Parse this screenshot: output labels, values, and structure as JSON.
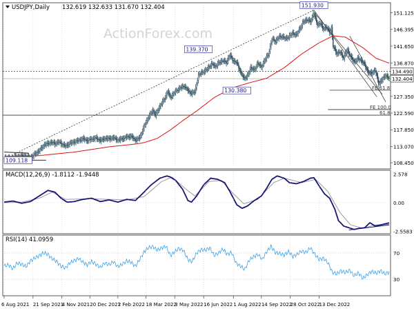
{
  "watermark": "ActionForex.com",
  "chart_data": [
    {
      "type": "candlestick",
      "symbol": "USDJPY",
      "header": "USDJPY,Daily",
      "ohlc_text": "132.619 132.633 131.670 132.404",
      "yticks": [
        151.125,
        146.395,
        141.65,
        136.87,
        132.404,
        127.35,
        122.59,
        117.85,
        113.07,
        108.45
      ],
      "ylim": [
        107.5,
        153.2
      ],
      "x_tick_labels": [
        "6 Aug 2021",
        "21 Sep 2021",
        "4 Nov 2021",
        "20 Dec 2021",
        "2 Feb 2022",
        "18 Mar 2022",
        "3 May 2022",
        "16 Jun 2022",
        "1 Aug 2022",
        "14 Sep 2022",
        "28 Oct 2022",
        "13 Dec 2022"
      ],
      "last_price_label": "132.404",
      "level_line_label": "134.490",
      "annotations": [
        "151.930",
        "139.370",
        "130.380",
        "109.118"
      ],
      "fibo_labels": [
        "FE 61.8",
        "FE 100.0",
        "61.8"
      ],
      "price": [
        [
          0,
          109.6
        ],
        [
          4,
          110.0
        ],
        [
          8,
          109.5
        ],
        [
          12,
          110.3
        ],
        [
          16,
          110.0
        ],
        [
          20,
          110.5
        ],
        [
          25,
          110.2
        ],
        [
          30,
          109.9
        ],
        [
          34,
          110.7
        ],
        [
          38,
          111.5
        ],
        [
          42,
          112.4
        ],
        [
          46,
          113.6
        ],
        [
          50,
          113.9
        ],
        [
          54,
          114.3
        ],
        [
          58,
          113.9
        ],
        [
          62,
          114.4
        ],
        [
          66,
          113.8
        ],
        [
          70,
          113.2
        ],
        [
          75,
          114.0
        ],
        [
          80,
          114.4
        ],
        [
          85,
          114.8
        ],
        [
          90,
          115.3
        ],
        [
          95,
          114.8
        ],
        [
          100,
          115.2
        ],
        [
          105,
          115.5
        ],
        [
          110,
          114.8
        ],
        [
          115,
          115.4
        ],
        [
          120,
          115.3
        ],
        [
          125,
          115.6
        ],
        [
          130,
          114.9
        ],
        [
          135,
          115.3
        ],
        [
          140,
          115.8
        ],
        [
          145,
          116.0
        ],
        [
          150,
          114.9
        ],
        [
          155,
          115.6
        ],
        [
          160,
          118.8
        ],
        [
          165,
          121.5
        ],
        [
          170,
          123.4
        ],
        [
          173,
          122.0
        ],
        [
          178,
          124.6
        ],
        [
          183,
          126.5
        ],
        [
          187,
          128.8
        ],
        [
          190,
          127.0
        ],
        [
          194,
          128.3
        ],
        [
          200,
          129.6
        ],
        [
          206,
          130.3
        ],
        [
          210,
          129.0
        ],
        [
          214,
          128.2
        ],
        [
          218,
          128.7
        ],
        [
          222,
          133.3
        ],
        [
          226,
          134.2
        ],
        [
          230,
          134.6
        ],
        [
          234,
          135.8
        ],
        [
          238,
          136.5
        ],
        [
          242,
          135.9
        ],
        [
          246,
          137.1
        ],
        [
          250,
          137.5
        ],
        [
          254,
          137.0
        ],
        [
          258,
          139.1
        ],
        [
          262,
          137.4
        ],
        [
          266,
          136.9
        ],
        [
          270,
          134.3
        ],
        [
          274,
          132.5
        ],
        [
          278,
          133.1
        ],
        [
          282,
          135.6
        ],
        [
          286,
          134.8
        ],
        [
          290,
          136.9
        ],
        [
          294,
          135.6
        ],
        [
          298,
          137.8
        ],
        [
          302,
          139.2
        ],
        [
          306,
          143.7
        ],
        [
          310,
          143.0
        ],
        [
          314,
          144.2
        ],
        [
          318,
          144.4
        ],
        [
          322,
          143.7
        ],
        [
          326,
          144.5
        ],
        [
          330,
          145.3
        ],
        [
          334,
          144.8
        ],
        [
          338,
          146.7
        ],
        [
          342,
          148.5
        ],
        [
          346,
          149.2
        ],
        [
          350,
          148.6
        ],
        [
          354,
          150.9
        ],
        [
          358,
          147.7
        ],
        [
          362,
          148.2
        ],
        [
          364,
          146.5
        ],
        [
          368,
          147.1
        ],
        [
          372,
          145.6
        ],
        [
          374,
          146.9
        ],
        [
          376,
          141.6
        ],
        [
          380,
          139.6
        ],
        [
          384,
          139.9
        ],
        [
          388,
          138.3
        ],
        [
          392,
          140.6
        ],
        [
          396,
          138.7
        ],
        [
          400,
          137.1
        ],
        [
          404,
          138.1
        ],
        [
          408,
          137.6
        ],
        [
          412,
          136.3
        ],
        [
          416,
          134.2
        ],
        [
          420,
          133.9
        ],
        [
          424,
          134.9
        ],
        [
          428,
          131.0
        ],
        [
          432,
          132.1
        ],
        [
          436,
          133.4
        ],
        [
          440,
          132.4
        ]
      ],
      "ma_slow": [
        [
          0,
          110.2
        ],
        [
          40,
          110.5
        ],
        [
          80,
          111.5
        ],
        [
          120,
          113.0
        ],
        [
          150,
          113.8
        ],
        [
          160,
          114.2
        ],
        [
          175,
          115.4
        ],
        [
          190,
          117.8
        ],
        [
          205,
          120.6
        ],
        [
          220,
          123.2
        ],
        [
          240,
          127.0
        ],
        [
          260,
          129.7
        ],
        [
          280,
          131.2
        ],
        [
          300,
          132.5
        ],
        [
          320,
          135.5
        ],
        [
          340,
          139.4
        ],
        [
          360,
          142.6
        ],
        [
          376,
          144.6
        ],
        [
          390,
          144.2
        ],
        [
          410,
          141.2
        ],
        [
          425,
          138.2
        ],
        [
          440,
          136.8
        ]
      ],
      "macd_label": "MACD(12,26,9) -1.8112 -1.9448",
      "macd_yticks": [
        "2.578",
        "0.00",
        "-2.5583"
      ],
      "macd_ylim": [
        -2.6,
        2.6
      ],
      "macd": [
        [
          0,
          0.05
        ],
        [
          10,
          0.15
        ],
        [
          20,
          -0.05
        ],
        [
          30,
          0.1
        ],
        [
          40,
          0.6
        ],
        [
          50,
          1.1
        ],
        [
          58,
          0.95
        ],
        [
          65,
          0.4
        ],
        [
          72,
          0.05
        ],
        [
          80,
          0.1
        ],
        [
          90,
          0.3
        ],
        [
          100,
          0.4
        ],
        [
          110,
          0.1
        ],
        [
          120,
          0.25
        ],
        [
          130,
          0.05
        ],
        [
          140,
          0.3
        ],
        [
          150,
          0.2
        ],
        [
          158,
          0.8
        ],
        [
          168,
          1.6
        ],
        [
          178,
          2.2
        ],
        [
          186,
          2.4
        ],
        [
          190,
          2.3
        ],
        [
          196,
          2.0
        ],
        [
          204,
          1.2
        ],
        [
          210,
          0.2
        ],
        [
          214,
          0.05
        ],
        [
          220,
          0.6
        ],
        [
          228,
          1.6
        ],
        [
          236,
          2.2
        ],
        [
          244,
          2.1
        ],
        [
          252,
          1.8
        ],
        [
          258,
          1.0
        ],
        [
          266,
          -0.2
        ],
        [
          272,
          -0.5
        ],
        [
          278,
          -0.3
        ],
        [
          286,
          0.2
        ],
        [
          294,
          0.6
        ],
        [
          300,
          1.3
        ],
        [
          306,
          2.1
        ],
        [
          312,
          2.4
        ],
        [
          320,
          2.2
        ],
        [
          326,
          1.8
        ],
        [
          334,
          1.7
        ],
        [
          342,
          1.9
        ],
        [
          350,
          2.2
        ],
        [
          354,
          2.25
        ],
        [
          360,
          1.5
        ],
        [
          366,
          0.8
        ],
        [
          372,
          0.4
        ],
        [
          378,
          -0.6
        ],
        [
          382,
          -1.6
        ],
        [
          388,
          -2.1
        ],
        [
          392,
          -2.2
        ],
        [
          400,
          -2.4
        ],
        [
          406,
          -2.3
        ],
        [
          412,
          -2.25
        ],
        [
          418,
          -1.8
        ],
        [
          424,
          -2.1
        ],
        [
          430,
          -2.0
        ],
        [
          440,
          -1.81
        ]
      ],
      "macd_signal": [
        [
          0,
          0.0
        ],
        [
          20,
          0.05
        ],
        [
          40,
          0.4
        ],
        [
          55,
          0.95
        ],
        [
          70,
          0.3
        ],
        [
          100,
          0.35
        ],
        [
          140,
          0.25
        ],
        [
          160,
          0.55
        ],
        [
          180,
          1.9
        ],
        [
          192,
          2.3
        ],
        [
          208,
          1.2
        ],
        [
          218,
          0.6
        ],
        [
          234,
          1.9
        ],
        [
          248,
          2.0
        ],
        [
          262,
          0.8
        ],
        [
          274,
          -0.1
        ],
        [
          290,
          0.3
        ],
        [
          308,
          1.8
        ],
        [
          320,
          2.2
        ],
        [
          340,
          1.8
        ],
        [
          356,
          2.1
        ],
        [
          370,
          1.0
        ],
        [
          384,
          -0.9
        ],
        [
          396,
          -2.0
        ],
        [
          410,
          -2.3
        ],
        [
          424,
          -2.0
        ],
        [
          440,
          -1.94
        ]
      ],
      "rsi_label": "RSI(14) 41.0959",
      "rsi_yticks": [
        70,
        30
      ],
      "rsi_ylim": [
        8,
        92
      ],
      "rsi": [
        [
          0,
          50
        ],
        [
          5,
          52
        ],
        [
          10,
          46
        ],
        [
          15,
          55
        ],
        [
          20,
          53
        ],
        [
          25,
          49
        ],
        [
          30,
          58
        ],
        [
          35,
          62
        ],
        [
          40,
          66
        ],
        [
          45,
          70
        ],
        [
          50,
          68
        ],
        [
          55,
          61
        ],
        [
          60,
          57
        ],
        [
          65,
          50
        ],
        [
          70,
          47
        ],
        [
          75,
          55
        ],
        [
          80,
          58
        ],
        [
          85,
          62
        ],
        [
          90,
          56
        ],
        [
          95,
          52
        ],
        [
          100,
          57
        ],
        [
          105,
          53
        ],
        [
          110,
          48
        ],
        [
          115,
          55
        ],
        [
          120,
          52
        ],
        [
          125,
          57
        ],
        [
          130,
          49
        ],
        [
          135,
          53
        ],
        [
          140,
          58
        ],
        [
          145,
          56
        ],
        [
          150,
          50
        ],
        [
          155,
          60
        ],
        [
          160,
          72
        ],
        [
          165,
          78
        ],
        [
          170,
          80
        ],
        [
          175,
          74
        ],
        [
          180,
          78
        ],
        [
          185,
          80
        ],
        [
          190,
          66
        ],
        [
          195,
          72
        ],
        [
          200,
          77
        ],
        [
          205,
          74
        ],
        [
          210,
          60
        ],
        [
          215,
          57
        ],
        [
          220,
          70
        ],
        [
          225,
          75
        ],
        [
          230,
          74
        ],
        [
          235,
          78
        ],
        [
          240,
          66
        ],
        [
          245,
          70
        ],
        [
          250,
          76
        ],
        [
          255,
          68
        ],
        [
          260,
          71
        ],
        [
          265,
          55
        ],
        [
          270,
          50
        ],
        [
          275,
          45
        ],
        [
          280,
          59
        ],
        [
          285,
          64
        ],
        [
          290,
          68
        ],
        [
          295,
          60
        ],
        [
          300,
          72
        ],
        [
          305,
          80
        ],
        [
          310,
          71
        ],
        [
          315,
          69
        ],
        [
          320,
          67
        ],
        [
          325,
          72
        ],
        [
          330,
          65
        ],
        [
          335,
          68
        ],
        [
          340,
          73
        ],
        [
          345,
          71
        ],
        [
          350,
          78
        ],
        [
          355,
          68
        ],
        [
          360,
          60
        ],
        [
          365,
          62
        ],
        [
          370,
          55
        ],
        [
          375,
          41
        ],
        [
          380,
          38
        ],
        [
          385,
          43
        ],
        [
          390,
          40
        ],
        [
          395,
          44
        ],
        [
          400,
          35
        ],
        [
          405,
          40
        ],
        [
          410,
          31
        ],
        [
          415,
          37
        ],
        [
          420,
          42
        ],
        [
          425,
          39
        ],
        [
          430,
          43
        ],
        [
          435,
          38
        ],
        [
          440,
          41
        ]
      ]
    }
  ]
}
